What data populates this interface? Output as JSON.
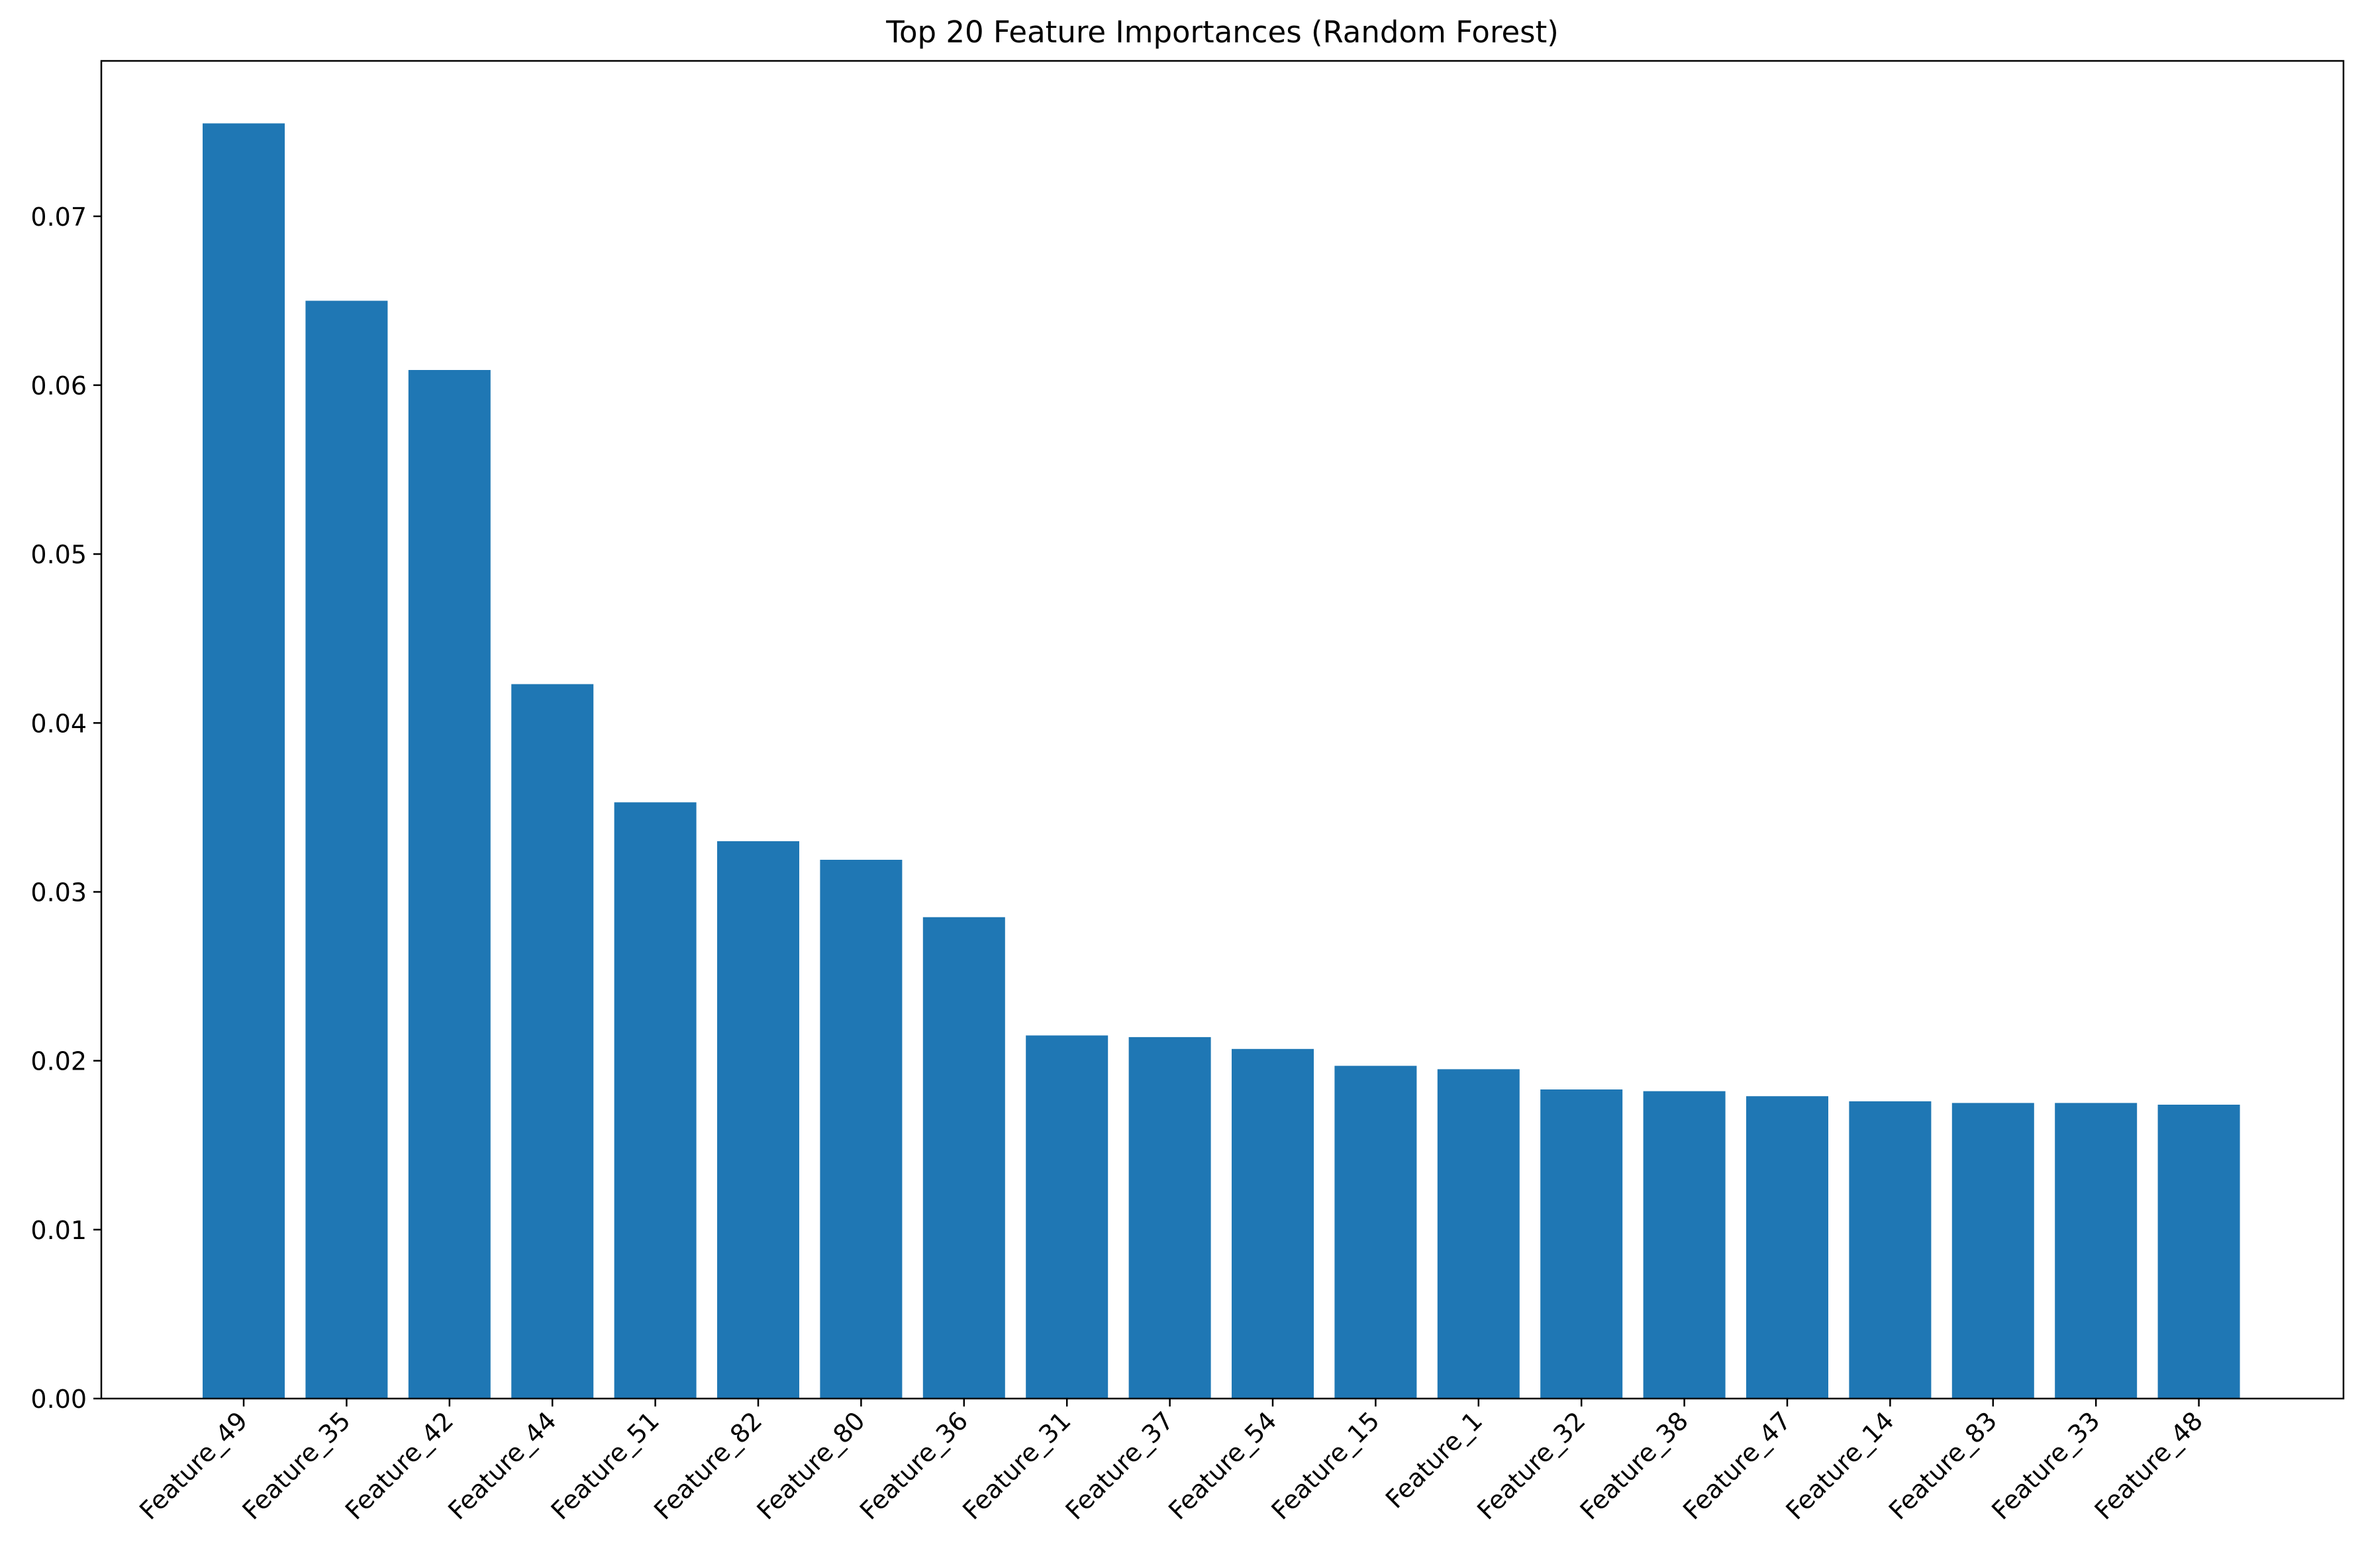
{
  "chart_data": {
    "type": "bar",
    "title": "Top 20 Feature Importances (Random Forest)",
    "xlabel": "",
    "ylabel": "",
    "categories": [
      "Feature_49",
      "Feature_35",
      "Feature_42",
      "Feature_44",
      "Feature_51",
      "Feature_82",
      "Feature_80",
      "Feature_36",
      "Feature_31",
      "Feature_37",
      "Feature_54",
      "Feature_15",
      "Feature_1",
      "Feature_32",
      "Feature_38",
      "Feature_47",
      "Feature_14",
      "Feature_83",
      "Feature_33",
      "Feature_48"
    ],
    "values": [
      0.0755,
      0.065,
      0.0609,
      0.0423,
      0.0353,
      0.033,
      0.0319,
      0.0285,
      0.0215,
      0.0214,
      0.0207,
      0.0197,
      0.0195,
      0.0183,
      0.0182,
      0.0179,
      0.0176,
      0.0175,
      0.0175,
      0.0174
    ],
    "ylim": [
      0,
      0.0792
    ],
    "yticks": [
      0.0,
      0.01,
      0.02,
      0.03,
      0.04,
      0.05,
      0.06,
      0.07
    ],
    "ytick_labels": [
      "0.00",
      "0.01",
      "0.02",
      "0.03",
      "0.04",
      "0.05",
      "0.06",
      "0.07"
    ],
    "bar_color": "#1f77b4",
    "grid": false,
    "legend": "none"
  }
}
